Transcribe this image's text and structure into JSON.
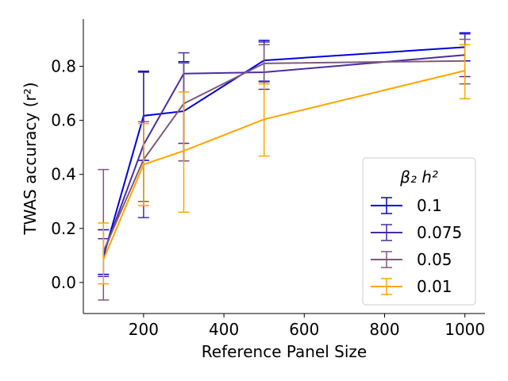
{
  "chart_data": {
    "type": "line",
    "xlabel": "Reference Panel Size",
    "ylabel": "TWAS accuracy (r²)",
    "xlim": [
      50,
      1050
    ],
    "ylim": [
      -0.115,
      0.975
    ],
    "xticks": [
      200,
      400,
      600,
      800,
      1000
    ],
    "yticks": [
      0.0,
      0.2,
      0.4,
      0.6,
      0.8
    ],
    "xtick_labels": [
      "200",
      "400",
      "600",
      "800",
      "1000"
    ],
    "ytick_labels": [
      "0.0",
      "0.2",
      "0.4",
      "0.6",
      "0.8"
    ],
    "grid": false,
    "legend": {
      "title": "β₂ h²",
      "placement": "lower-right"
    },
    "x": [
      100,
      200,
      300,
      500,
      1000
    ],
    "series": [
      {
        "name": "0.1",
        "color": "#0000dd",
        "values": [
          0.095,
          0.617,
          0.634,
          0.822,
          0.871
        ],
        "err_low": [
          0.03,
          0.452,
          0.45,
          0.745,
          0.82
        ],
        "err_high": [
          0.195,
          0.782,
          0.817,
          0.896,
          0.924
        ]
      },
      {
        "name": "0.075",
        "color": "#4b2ca3",
        "values": [
          0.105,
          0.51,
          0.773,
          0.778,
          0.842
        ],
        "err_low": [
          0.022,
          0.24,
          0.515,
          0.715,
          0.762
        ],
        "err_high": [
          0.162,
          0.778,
          0.85,
          0.89,
          0.92
        ]
      },
      {
        "name": "0.05",
        "color": "#7f5a7a",
        "values": [
          0.115,
          0.455,
          0.662,
          0.811,
          0.82
        ],
        "err_low": [
          -0.065,
          0.3,
          0.45,
          0.742,
          0.735
        ],
        "err_high": [
          0.418,
          0.595,
          0.812,
          0.88,
          0.9
        ]
      },
      {
        "name": "0.01",
        "color": "#ffa500",
        "values": [
          0.085,
          0.437,
          0.487,
          0.604,
          0.784
        ],
        "err_low": [
          -0.005,
          0.285,
          0.26,
          0.468,
          0.68
        ],
        "err_high": [
          0.22,
          0.588,
          0.705,
          0.735,
          0.88
        ]
      }
    ]
  }
}
